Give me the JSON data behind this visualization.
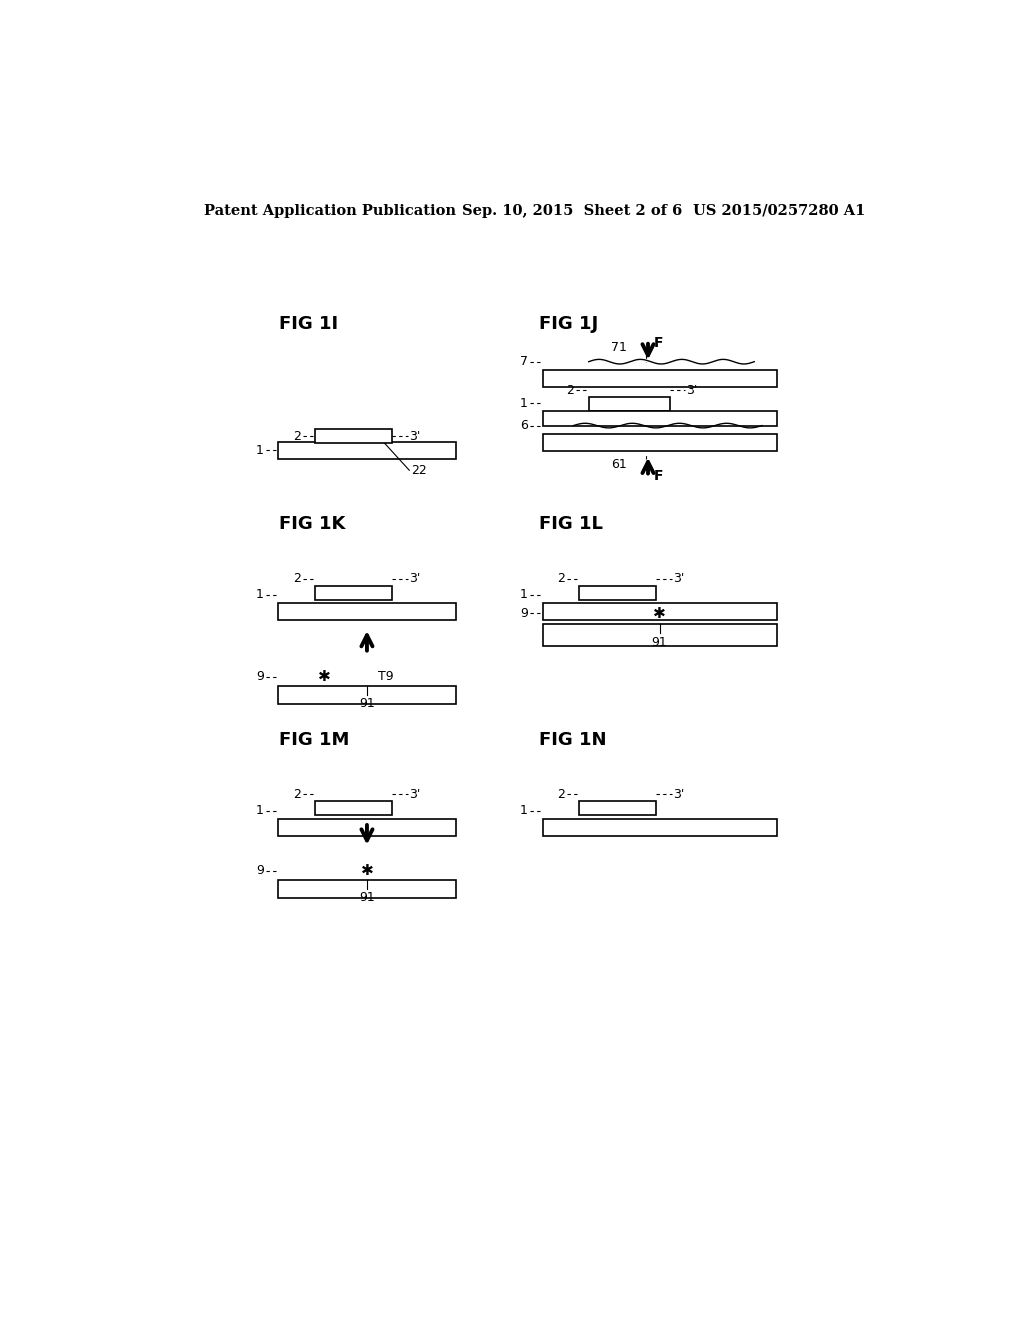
{
  "bg_color": "#ffffff",
  "header_left": "Patent Application Publication",
  "header_center": "Sep. 10, 2015  Sheet 2 of 6",
  "header_right": "US 2015/0257280 A1"
}
